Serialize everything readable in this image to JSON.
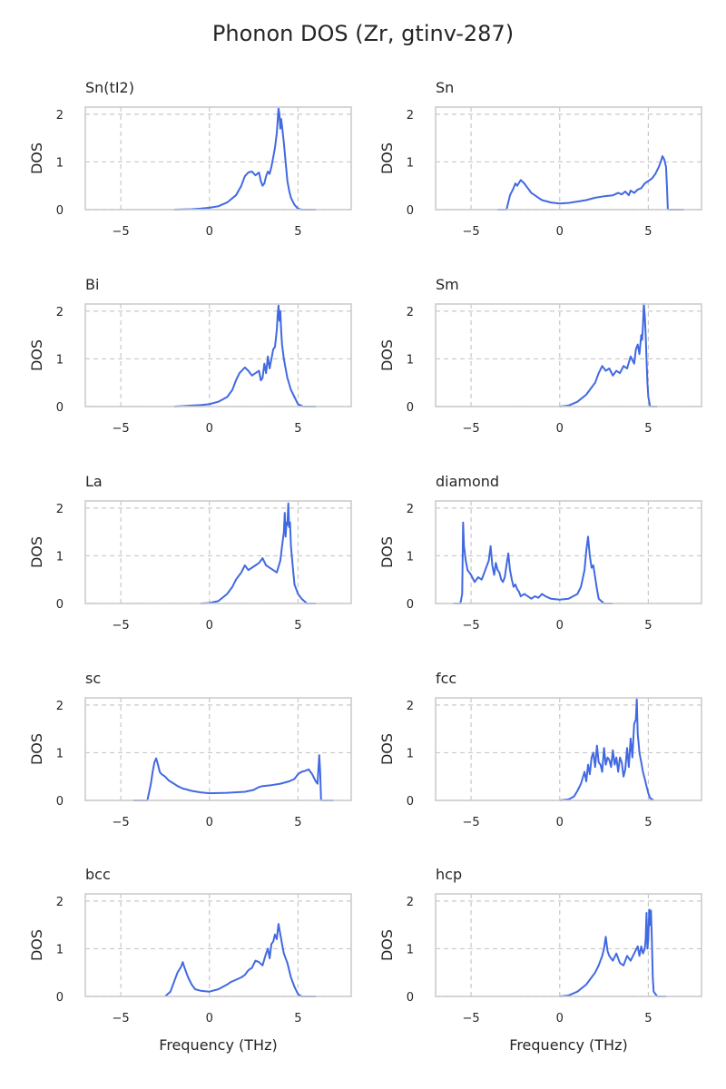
{
  "figure": {
    "title": "Phonon DOS (Zr, gtinv-287)"
  },
  "chart_data": {
    "type": "line",
    "title": "Phonon DOS (Zr, gtinv-287)",
    "xlabel": "Frequency (THz)",
    "ylabel": "DOS",
    "xlim": [
      -7,
      8
    ],
    "ylim": [
      0,
      2.15
    ],
    "x_ticks": [
      "−5",
      "0",
      "5"
    ],
    "y_ticks": [
      "0",
      "1",
      "2"
    ],
    "grid": "dashed",
    "line_color": "#4169e1",
    "panels": [
      {
        "title": "Sn(tI2)",
        "x": [
          -2,
          -1,
          -0.5,
          0,
          0.5,
          1,
          1.5,
          1.8,
          2,
          2.2,
          2.4,
          2.6,
          2.8,
          2.9,
          3,
          3.1,
          3.2,
          3.3,
          3.4,
          3.5,
          3.6,
          3.7,
          3.8,
          3.9,
          3.95,
          4,
          4.05,
          4.1,
          4.2,
          4.3,
          4.4,
          4.5,
          4.6,
          4.8,
          5,
          5.2,
          5.5,
          6
        ],
        "values": [
          0,
          0.01,
          0.02,
          0.04,
          0.07,
          0.15,
          0.3,
          0.5,
          0.7,
          0.78,
          0.8,
          0.72,
          0.78,
          0.6,
          0.5,
          0.55,
          0.7,
          0.8,
          0.75,
          0.9,
          1.1,
          1.3,
          1.6,
          2.12,
          2.0,
          1.7,
          1.9,
          1.75,
          1.4,
          1.0,
          0.6,
          0.4,
          0.25,
          0.1,
          0.02,
          0,
          0,
          0
        ]
      },
      {
        "title": "Sn",
        "x": [
          -3.5,
          -3,
          -2.8,
          -2.6,
          -2.5,
          -2.4,
          -2.2,
          -2,
          -1.8,
          -1.6,
          -1.4,
          -1.2,
          -1,
          -0.5,
          0,
          0.5,
          1,
          1.5,
          2,
          2.5,
          3,
          3.3,
          3.5,
          3.7,
          3.9,
          4,
          4.2,
          4.4,
          4.6,
          4.8,
          5,
          5.2,
          5.4,
          5.6,
          5.7,
          5.8,
          5.9,
          6,
          6.05,
          6.1,
          6.5,
          7
        ],
        "values": [
          0,
          0,
          0.3,
          0.45,
          0.55,
          0.5,
          0.62,
          0.55,
          0.45,
          0.35,
          0.3,
          0.25,
          0.2,
          0.15,
          0.13,
          0.14,
          0.17,
          0.2,
          0.25,
          0.28,
          0.3,
          0.35,
          0.32,
          0.38,
          0.3,
          0.4,
          0.35,
          0.42,
          0.45,
          0.55,
          0.6,
          0.65,
          0.75,
          0.9,
          1.0,
          1.12,
          1.05,
          0.9,
          0.5,
          0,
          0,
          0
        ]
      },
      {
        "title": "Bi",
        "x": [
          -2,
          -1.5,
          -1,
          -0.5,
          0,
          0.5,
          1,
          1.3,
          1.5,
          1.7,
          1.9,
          2,
          2.2,
          2.4,
          2.6,
          2.8,
          2.9,
          3,
          3.1,
          3.2,
          3.3,
          3.4,
          3.5,
          3.6,
          3.7,
          3.8,
          3.85,
          3.9,
          3.95,
          4,
          4.05,
          4.1,
          4.2,
          4.3,
          4.4,
          4.6,
          4.8,
          5,
          5.3,
          6
        ],
        "values": [
          0,
          0.01,
          0.02,
          0.03,
          0.05,
          0.1,
          0.2,
          0.35,
          0.55,
          0.7,
          0.78,
          0.82,
          0.75,
          0.65,
          0.7,
          0.75,
          0.55,
          0.6,
          0.9,
          0.7,
          1.05,
          0.8,
          1.0,
          1.2,
          1.25,
          1.6,
          1.9,
          2.12,
          1.8,
          2.0,
          1.6,
          1.3,
          1.0,
          0.8,
          0.6,
          0.35,
          0.2,
          0.05,
          0,
          0
        ]
      },
      {
        "title": "Sm",
        "x": [
          0,
          0.5,
          1,
          1.5,
          2,
          2.2,
          2.4,
          2.6,
          2.8,
          3,
          3.2,
          3.4,
          3.6,
          3.8,
          4,
          4.2,
          4.3,
          4.4,
          4.5,
          4.6,
          4.65,
          4.7,
          4.75,
          4.8,
          4.85,
          4.9,
          4.95,
          5,
          5.1,
          5.5
        ],
        "values": [
          0,
          0.02,
          0.1,
          0.25,
          0.5,
          0.7,
          0.85,
          0.75,
          0.8,
          0.65,
          0.75,
          0.7,
          0.85,
          0.8,
          1.05,
          0.9,
          1.2,
          1.3,
          1.1,
          1.5,
          1.4,
          1.7,
          2.15,
          1.9,
          1.5,
          1.0,
          0.5,
          0.2,
          0,
          0
        ]
      },
      {
        "title": "La",
        "x": [
          -0.5,
          0,
          0.5,
          1,
          1.3,
          1.5,
          1.8,
          2,
          2.2,
          2.4,
          2.6,
          2.8,
          3,
          3.2,
          3.4,
          3.6,
          3.8,
          4,
          4.1,
          4.2,
          4.25,
          4.3,
          4.35,
          4.4,
          4.45,
          4.5,
          4.55,
          4.6,
          4.7,
          4.8,
          5,
          5.2,
          5.5,
          6
        ],
        "values": [
          0,
          0.01,
          0.05,
          0.2,
          0.35,
          0.5,
          0.65,
          0.8,
          0.7,
          0.75,
          0.8,
          0.85,
          0.95,
          0.8,
          0.75,
          0.7,
          0.65,
          0.9,
          1.2,
          1.5,
          1.9,
          1.4,
          1.7,
          1.65,
          2.1,
          1.6,
          1.7,
          1.2,
          0.8,
          0.4,
          0.2,
          0.1,
          0,
          0
        ]
      },
      {
        "title": "diamond",
        "x": [
          -6,
          -5.6,
          -5.5,
          -5.45,
          -5.4,
          -5.3,
          -5.2,
          -5,
          -4.8,
          -4.6,
          -4.4,
          -4.2,
          -4,
          -3.9,
          -3.8,
          -3.7,
          -3.6,
          -3.5,
          -3.4,
          -3.3,
          -3.2,
          -3.1,
          -3,
          -2.9,
          -2.8,
          -2.7,
          -2.6,
          -2.5,
          -2.4,
          -2.3,
          -2.2,
          -2,
          -1.8,
          -1.6,
          -1.4,
          -1.2,
          -1,
          -0.8,
          -0.5,
          0,
          0.5,
          1,
          1.2,
          1.4,
          1.5,
          1.6,
          1.7,
          1.8,
          1.9,
          2,
          2.1,
          2.2,
          2.5,
          3
        ],
        "values": [
          0,
          0,
          0.2,
          1.7,
          1.2,
          0.9,
          0.7,
          0.6,
          0.45,
          0.55,
          0.5,
          0.7,
          0.9,
          1.2,
          0.8,
          0.6,
          0.85,
          0.7,
          0.65,
          0.5,
          0.45,
          0.55,
          0.8,
          1.05,
          0.7,
          0.5,
          0.35,
          0.4,
          0.3,
          0.25,
          0.15,
          0.2,
          0.15,
          0.1,
          0.15,
          0.12,
          0.2,
          0.15,
          0.1,
          0.08,
          0.1,
          0.2,
          0.35,
          0.7,
          1.1,
          1.4,
          1.0,
          0.75,
          0.8,
          0.55,
          0.3,
          0.1,
          0,
          0
        ]
      },
      {
        "title": "sc",
        "x": [
          -4.3,
          -3.5,
          -3.3,
          -3.2,
          -3.1,
          -3,
          -2.9,
          -2.8,
          -2.7,
          -2.5,
          -2.3,
          -2,
          -1.8,
          -1.5,
          -1.2,
          -1,
          -0.5,
          0,
          1,
          2,
          2.5,
          2.8,
          3,
          3.5,
          4,
          4.5,
          4.8,
          5,
          5.2,
          5.4,
          5.6,
          5.8,
          6,
          6.1,
          6.2,
          6.25,
          6.3,
          6.5,
          7
        ],
        "values": [
          0,
          0,
          0.35,
          0.6,
          0.8,
          0.88,
          0.75,
          0.6,
          0.55,
          0.5,
          0.42,
          0.35,
          0.3,
          0.25,
          0.22,
          0.2,
          0.17,
          0.15,
          0.16,
          0.18,
          0.22,
          0.28,
          0.3,
          0.32,
          0.35,
          0.4,
          0.45,
          0.55,
          0.6,
          0.62,
          0.65,
          0.55,
          0.4,
          0.35,
          0.95,
          0.6,
          0,
          0,
          0
        ]
      },
      {
        "title": "fcc",
        "x": [
          0,
          0.5,
          0.8,
          1,
          1.2,
          1.4,
          1.5,
          1.6,
          1.7,
          1.8,
          1.9,
          2,
          2.1,
          2.2,
          2.3,
          2.4,
          2.5,
          2.6,
          2.7,
          2.8,
          2.9,
          3,
          3.1,
          3.2,
          3.3,
          3.4,
          3.5,
          3.6,
          3.7,
          3.8,
          3.9,
          4,
          4.1,
          4.2,
          4.3,
          4.35,
          4.4,
          4.45,
          4.5,
          4.6,
          4.7,
          4.8,
          4.9,
          5,
          5.1,
          5.3
        ],
        "values": [
          0,
          0.02,
          0.08,
          0.2,
          0.35,
          0.6,
          0.4,
          0.75,
          0.55,
          0.9,
          1.0,
          0.7,
          1.15,
          0.8,
          0.75,
          0.6,
          1.1,
          0.75,
          0.9,
          0.85,
          0.7,
          1.05,
          0.75,
          0.9,
          0.6,
          0.9,
          0.8,
          0.5,
          0.65,
          1.1,
          0.7,
          1.3,
          0.9,
          1.6,
          1.7,
          2.12,
          1.4,
          1.2,
          1.0,
          0.8,
          0.6,
          0.45,
          0.3,
          0.15,
          0.05,
          0
        ]
      },
      {
        "title": "bcc",
        "x": [
          -2.5,
          -2.2,
          -2,
          -1.8,
          -1.6,
          -1.5,
          -1.4,
          -1.3,
          -1.2,
          -1,
          -0.8,
          -0.5,
          0,
          0.5,
          1,
          1.2,
          1.5,
          1.8,
          2,
          2.2,
          2.4,
          2.6,
          2.8,
          3,
          3.2,
          3.3,
          3.4,
          3.5,
          3.6,
          3.7,
          3.8,
          3.9,
          4,
          4.1,
          4.2,
          4.4,
          4.6,
          4.8,
          5,
          5.2,
          6
        ],
        "values": [
          0,
          0.1,
          0.3,
          0.5,
          0.62,
          0.72,
          0.6,
          0.5,
          0.4,
          0.25,
          0.15,
          0.12,
          0.1,
          0.15,
          0.25,
          0.3,
          0.35,
          0.4,
          0.45,
          0.55,
          0.6,
          0.75,
          0.72,
          0.65,
          0.9,
          1.0,
          0.8,
          1.1,
          1.15,
          1.3,
          1.2,
          1.52,
          1.3,
          1.1,
          0.9,
          0.7,
          0.4,
          0.2,
          0.05,
          0,
          0
        ]
      },
      {
        "title": "hcp",
        "x": [
          0,
          0.5,
          1,
          1.5,
          2,
          2.2,
          2.4,
          2.5,
          2.6,
          2.7,
          2.8,
          3,
          3.2,
          3.4,
          3.6,
          3.8,
          4,
          4.2,
          4.4,
          4.5,
          4.6,
          4.7,
          4.8,
          4.85,
          4.9,
          4.95,
          5,
          5.05,
          5.1,
          5.15,
          5.2,
          5.25,
          5.3,
          5.5,
          6
        ],
        "values": [
          0,
          0.02,
          0.1,
          0.25,
          0.5,
          0.65,
          0.85,
          1.0,
          1.25,
          0.95,
          0.85,
          0.75,
          0.9,
          0.7,
          0.65,
          0.85,
          0.75,
          0.9,
          1.05,
          0.85,
          1.05,
          0.9,
          1.0,
          1.2,
          1.75,
          1.0,
          1.2,
          1.82,
          1.5,
          1.8,
          1.2,
          0.4,
          0.1,
          0,
          0
        ]
      }
    ]
  }
}
